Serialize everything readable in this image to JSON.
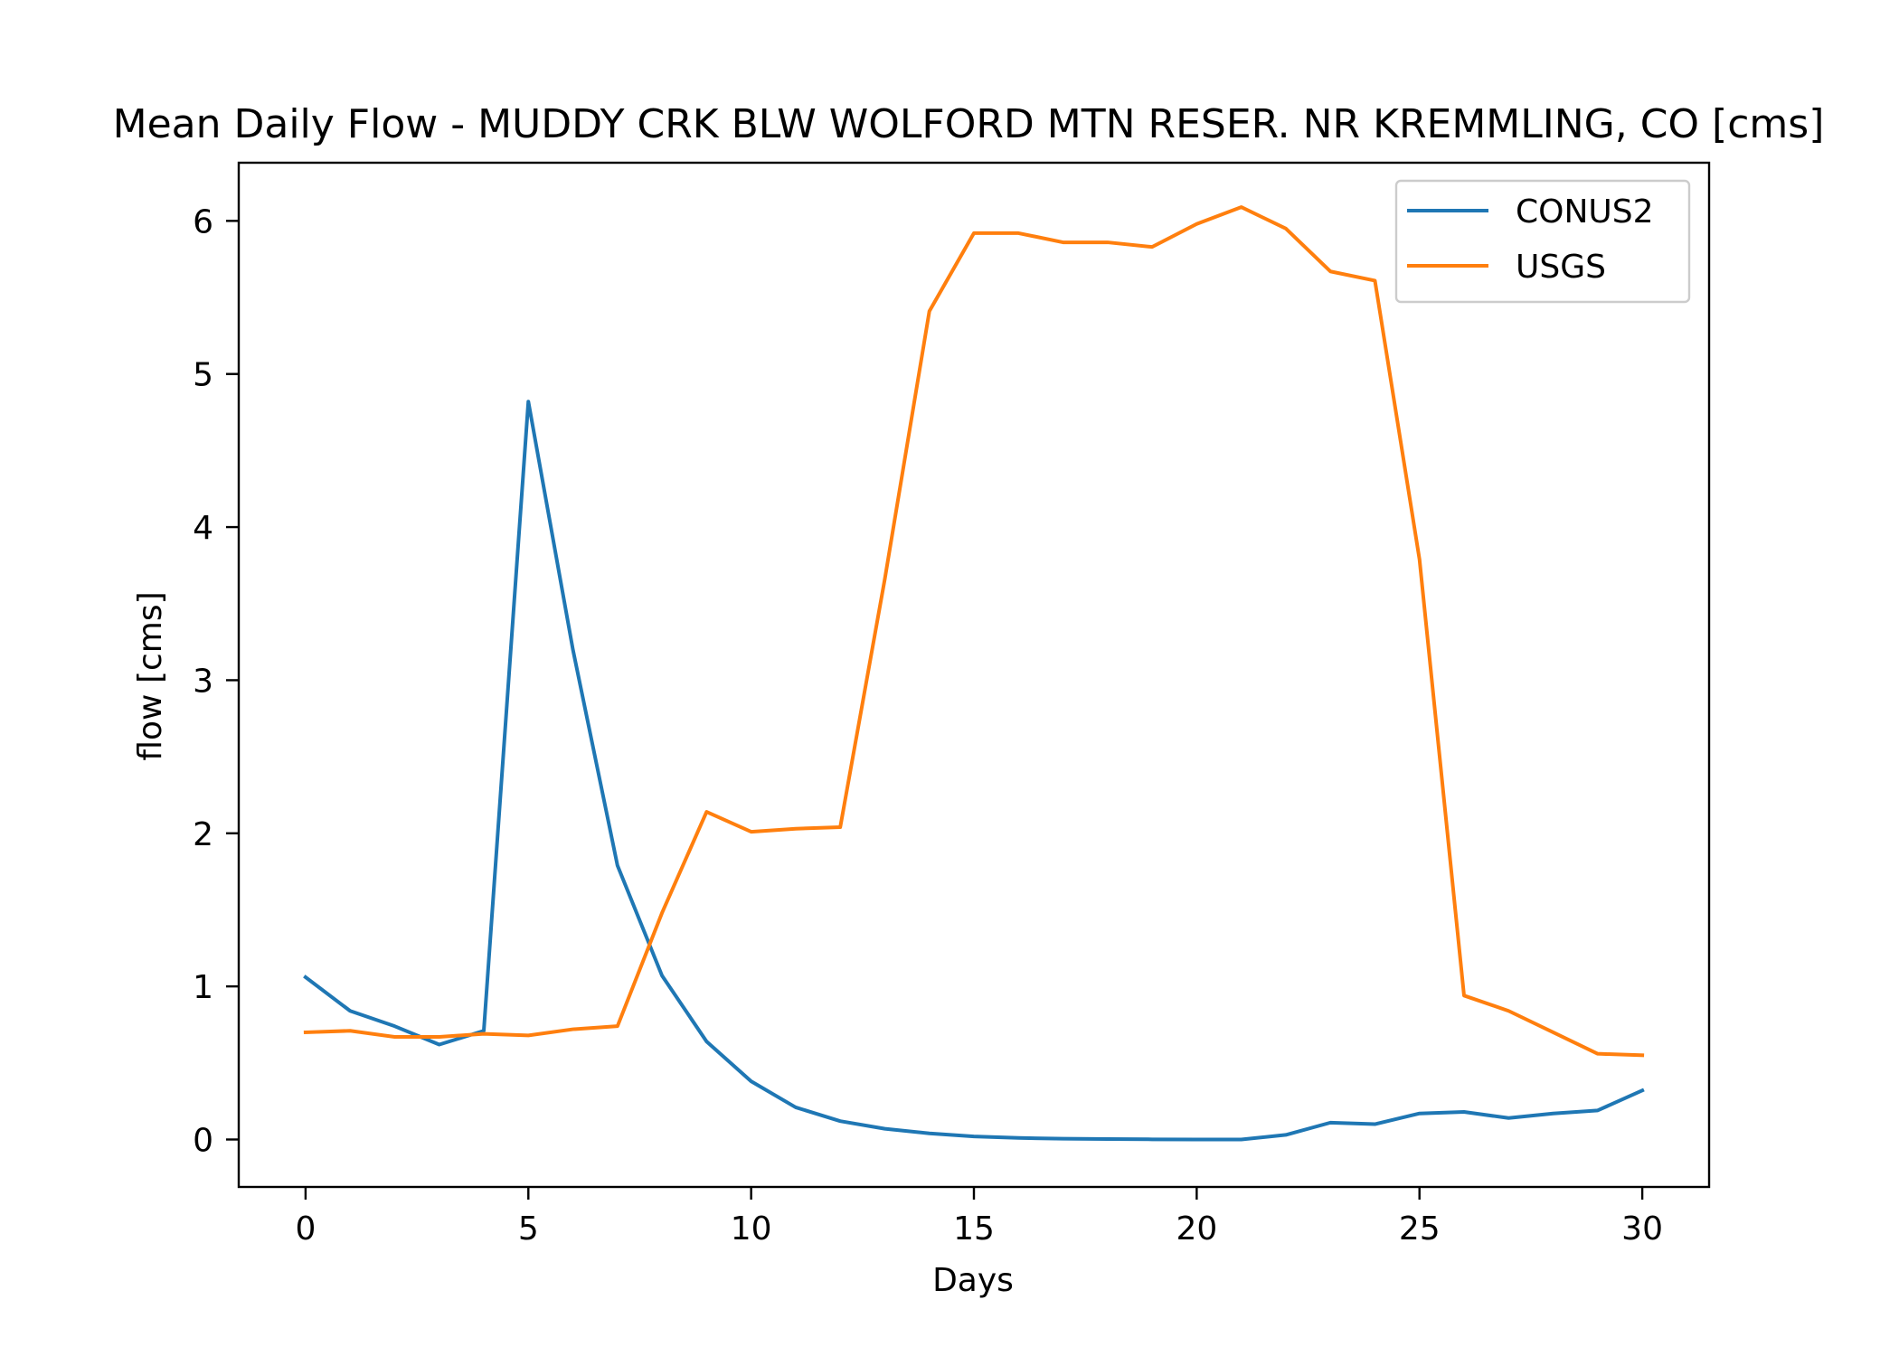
{
  "chart_data": {
    "type": "line",
    "title": "Mean Daily Flow - MUDDY CRK BLW WOLFORD MTN RESER. NR KREMMLING, CO [cms]",
    "xlabel": "Days",
    "ylabel": "flow [cms]",
    "xlim": [
      -1.5,
      31.5
    ],
    "ylim": [
      -0.31,
      6.38
    ],
    "x_ticks": [
      0,
      5,
      10,
      15,
      20,
      25,
      30
    ],
    "y_ticks": [
      0,
      1,
      2,
      3,
      4,
      5,
      6
    ],
    "grid": false,
    "legend_position": "upper right",
    "x": [
      0,
      1,
      2,
      3,
      4,
      5,
      6,
      7,
      8,
      9,
      10,
      11,
      12,
      13,
      14,
      15,
      16,
      17,
      18,
      19,
      20,
      21,
      22,
      23,
      24,
      25,
      26,
      27,
      28,
      29,
      30
    ],
    "series": [
      {
        "name": "CONUS2",
        "color": "#1f77b4",
        "values": [
          1.06,
          0.84,
          0.74,
          0.62,
          0.71,
          4.82,
          3.2,
          1.79,
          1.07,
          0.64,
          0.38,
          0.21,
          0.12,
          0.07,
          0.04,
          0.02,
          0.01,
          0.005,
          0.003,
          0.001,
          0.0,
          0.0,
          0.03,
          0.11,
          0.1,
          0.17,
          0.18,
          0.14,
          0.17,
          0.19,
          0.32
        ]
      },
      {
        "name": "USGS",
        "color": "#ff7f0e",
        "values": [
          0.7,
          0.71,
          0.67,
          0.67,
          0.69,
          0.68,
          0.72,
          0.74,
          1.48,
          2.14,
          2.01,
          2.03,
          2.04,
          3.66,
          5.41,
          5.92,
          5.92,
          5.86,
          5.86,
          5.83,
          5.98,
          6.09,
          5.95,
          5.67,
          5.61,
          3.79,
          0.94,
          0.84,
          0.7,
          0.56,
          0.55
        ]
      }
    ]
  }
}
